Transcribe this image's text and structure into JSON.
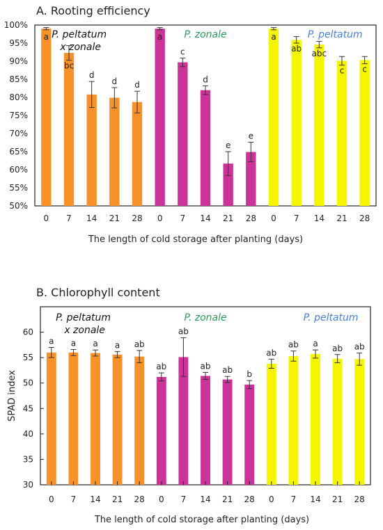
{
  "colors": {
    "ppz": "#f7922b",
    "pz": "#cc3399",
    "pp": "#f5f500",
    "label_ppz": "#111111",
    "label_pz": "#2e9a5a",
    "label_pp": "#4a7fd0"
  },
  "chart_data": [
    {
      "type": "bar",
      "title": "A. Rooting efficiency",
      "xlabel": "The length of cold storage after planting (days)",
      "ylabel": "",
      "ylim": [
        50,
        100
      ],
      "yticks": [
        "50%",
        "55%",
        "60%",
        "65%",
        "70%",
        "75%",
        "80%",
        "85%",
        "90%",
        "95%",
        "100%"
      ],
      "groups": [
        {
          "name_line1": "P. peltatum",
          "name_line2": "x zonale",
          "color_key": "ppz",
          "categories": [
            "0",
            "7",
            "14",
            "21",
            "28"
          ],
          "values": [
            99.0,
            92.3,
            80.8,
            79.9,
            78.7
          ],
          "errors": [
            0.3,
            2.0,
            3.6,
            2.8,
            3.0
          ],
          "letters": [
            "a",
            "bc",
            "d",
            "d",
            "d"
          ]
        },
        {
          "name_line1": "P. zonale",
          "name_line2": "",
          "color_key": "pz",
          "categories": [
            "0",
            "7",
            "14",
            "21",
            "28"
          ],
          "values": [
            99.0,
            89.7,
            82.0,
            61.7,
            64.9
          ],
          "errors": [
            0.3,
            1.2,
            1.2,
            3.3,
            2.7
          ],
          "letters": [
            "a",
            "c",
            "d",
            "e",
            "e"
          ]
        },
        {
          "name_line1": "P. peltatum",
          "name_line2": "",
          "color_key": "pp",
          "categories": [
            "0",
            "7",
            "14",
            "21",
            "28"
          ],
          "values": [
            99.0,
            95.9,
            94.6,
            90.1,
            90.3
          ],
          "errors": [
            0.3,
            0.9,
            0.9,
            1.2,
            1.0
          ],
          "letters": [
            "a",
            "ab",
            "abc",
            "c",
            "c"
          ]
        }
      ]
    },
    {
      "type": "bar",
      "title": "B. Chlorophyll content",
      "xlabel": "The length of cold storage after planting (days)",
      "ylabel": "SPAD index",
      "ylim": [
        30,
        65
      ],
      "yticks": [
        "30",
        "35",
        "40",
        "45",
        "50",
        "55",
        "60"
      ],
      "groups": [
        {
          "name_line1": "P. peltatum",
          "name_line2": "x zonale",
          "color_key": "ppz",
          "categories": [
            "0",
            "7",
            "14",
            "21",
            "28"
          ],
          "values": [
            56.0,
            56.0,
            55.9,
            55.6,
            55.2
          ],
          "errors": [
            1.0,
            0.6,
            0.6,
            0.6,
            1.2
          ],
          "letters": [
            "a",
            "a",
            "a",
            "a",
            "ab"
          ]
        },
        {
          "name_line1": "P. zonale",
          "name_line2": "",
          "color_key": "pz",
          "categories": [
            "0",
            "7",
            "14",
            "21",
            "28"
          ],
          "values": [
            51.2,
            55.1,
            51.4,
            50.7,
            49.7
          ],
          "errors": [
            0.8,
            3.8,
            0.7,
            0.6,
            0.8
          ],
          "letters": [
            "ab",
            "ab",
            "ab",
            "ab",
            "b"
          ]
        },
        {
          "name_line1": "P. peltatum",
          "name_line2": "",
          "color_key": "pp",
          "categories": [
            "0",
            "7",
            "14",
            "21",
            "28"
          ],
          "values": [
            53.8,
            55.3,
            55.7,
            54.8,
            54.7
          ],
          "errors": [
            0.9,
            1.0,
            0.8,
            0.8,
            1.2
          ],
          "letters": [
            "ab",
            "ab",
            "a",
            "ab",
            "ab"
          ]
        }
      ]
    }
  ]
}
